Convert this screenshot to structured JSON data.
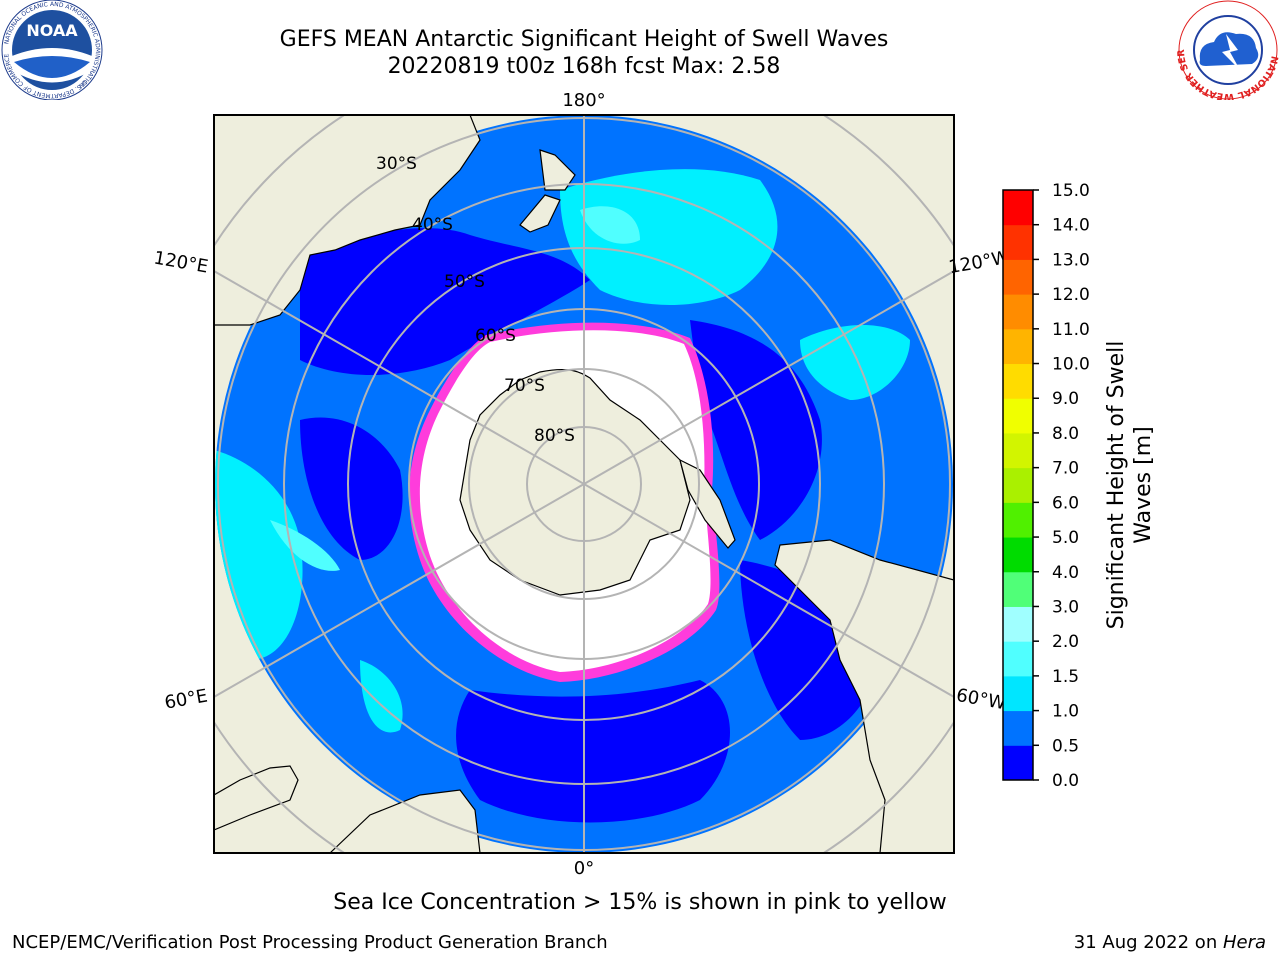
{
  "title_line1": "GEFS MEAN Antarctic Significant Height of Swell Waves",
  "title_line2": "20220819 t00z 168h fcst   Max: 2.58",
  "caption": "Sea Ice Concentration > 15% is shown in pink to yellow",
  "footer_left": "NCEP/EMC/Verification Post Processing Product Generation Branch",
  "footer_right_date": "31 Aug 2022 on ",
  "footer_right_host": "Hera",
  "logos": {
    "noaa_text": "NOAA",
    "noaa_ring": "NATIONAL OCEANIC AND ATMOSPHERIC ADMINISTRATION",
    "noaa_ring_bottom": "U.S. DEPARTMENT OF COMMERCE",
    "nws_ring": "NATIONAL WEATHER SERVICE"
  },
  "map": {
    "projection": "south-polar-stereographic",
    "lat_labels": [
      "30°S",
      "40°S",
      "50°S",
      "60°S",
      "70°S",
      "80°S"
    ],
    "lon_labels": {
      "top": "180°",
      "bottom": "0°",
      "upper_left": "120°E",
      "lower_left": "60°E",
      "upper_right": "120°W",
      "lower_right": "60°W"
    },
    "colors": {
      "land": "#eeeedd",
      "ocean_low": "#0000ff",
      "ocean_mid": "#0073ff",
      "ocean_high": "#00f0ff",
      "ocean_higher": "#50ffff",
      "ice": "#ffffff",
      "ice_edge": "#ff3cdc",
      "grid": "#b4b4b4"
    }
  },
  "colorbar": {
    "label_line1": "Significant Height of Swell",
    "label_line2": "Waves [m]",
    "ticks": [
      "0.0",
      "0.5",
      "1.0",
      "1.5",
      "2.0",
      "3.0",
      "4.0",
      "5.0",
      "6.0",
      "7.0",
      "8.0",
      "9.0",
      "10.0",
      "11.0",
      "12.0",
      "13.0",
      "14.0",
      "15.0"
    ],
    "colors": [
      "#0000ff",
      "#0073ff",
      "#00e6ff",
      "#50ffff",
      "#a0ffff",
      "#50ff78",
      "#00dc00",
      "#50f000",
      "#aaf000",
      "#d2f500",
      "#f0ff00",
      "#ffdc00",
      "#ffb400",
      "#ff8c00",
      "#ff6400",
      "#ff3200",
      "#ff0000"
    ]
  }
}
